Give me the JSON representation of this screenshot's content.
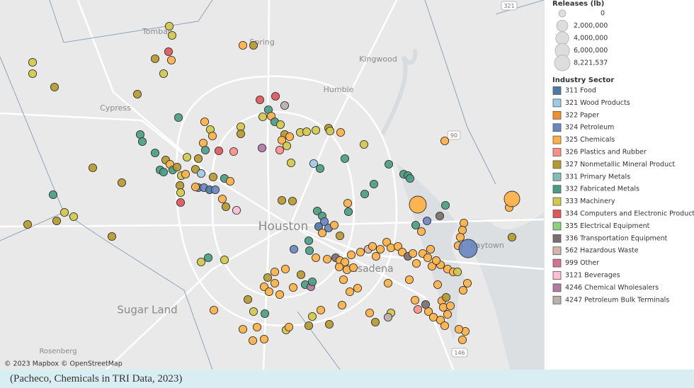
{
  "map": {
    "place_labels": [
      "Tomball",
      "Spring",
      "Kingwood",
      "Humble",
      "Cypress",
      "Houston",
      "Pasadena",
      "Baytown",
      "Sugar Land",
      "Rosenberg"
    ],
    "road_shields": [
      "321",
      "90",
      "146"
    ],
    "attribution": "© 2023 Mapbox © OpenStreetMap"
  },
  "legend": {
    "size_title": "Releases (lb)",
    "size_scale": [
      {
        "value": 0,
        "label": "0"
      },
      {
        "value": 2000000,
        "label": "2,000,000"
      },
      {
        "value": 4000000,
        "label": "4,000,000"
      },
      {
        "value": 6000000,
        "label": "6,000,000"
      },
      {
        "value": 8221537,
        "label": "8,221,537"
      }
    ],
    "color_title": "Industry Sector",
    "sectors": [
      {
        "name": "311 Food",
        "color": "#4e79a7"
      },
      {
        "name": "321 Wood Products",
        "color": "#a0cbe8"
      },
      {
        "name": "322 Paper",
        "color": "#f28e2b"
      },
      {
        "name": "324 Petroleum",
        "color": "#6a87c0"
      },
      {
        "name": "325 Chemicals",
        "color": "#ffb145"
      },
      {
        "name": "326 Plastics and Rubber",
        "color": "#ff8f84"
      },
      {
        "name": "327 Nonmetallic Mineral Product",
        "color": "#b6992d"
      },
      {
        "name": "331 Primary Metals",
        "color": "#86bcb6"
      },
      {
        "name": "332 Fabricated Metals",
        "color": "#4a9d84"
      },
      {
        "name": "333 Machinery",
        "color": "#d2c84a"
      },
      {
        "name": "334 Computers and Electronic Products",
        "color": "#e15759"
      },
      {
        "name": "335 Electrical Equipment",
        "color": "#8cd17d"
      },
      {
        "name": "336 Transportation Equipment",
        "color": "#79706e"
      },
      {
        "name": "562 Hazardous Waste",
        "color": "#d7b5a6"
      },
      {
        "name": "999 Other",
        "color": "#d37295"
      },
      {
        "name": "3121 Beverages",
        "color": "#fabfd2"
      },
      {
        "name": "4246 Chemical Wholesalers",
        "color": "#b07aa1"
      },
      {
        "name": "4247 Petroleum Bulk Terminals",
        "color": "#bab0ac"
      }
    ]
  },
  "caption": "(Pacheco, Chemicals in TRI Data, 2023)"
}
